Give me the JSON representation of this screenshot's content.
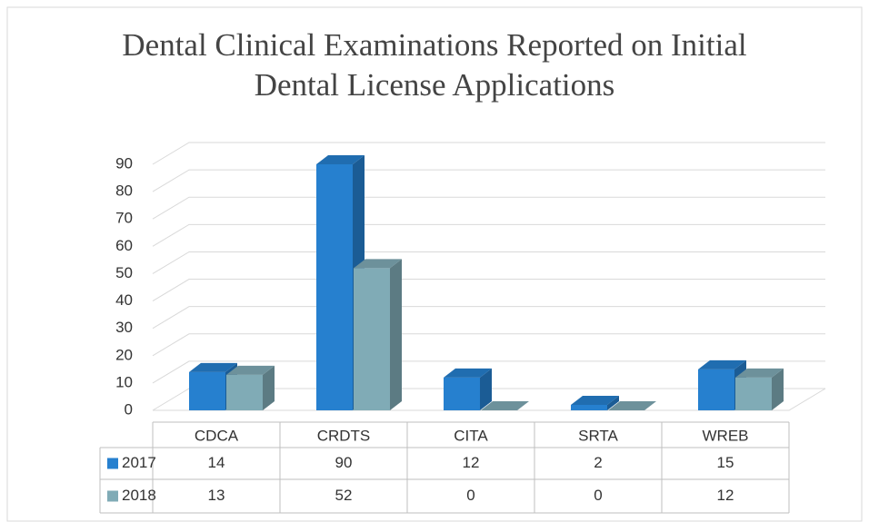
{
  "chart_data": {
    "type": "bar3d",
    "title": "Dental Clinical Examinations Reported on Initial Dental License Applications",
    "categories": [
      "CDCA",
      "CRDTS",
      "CITA",
      "SRTA",
      "WREB"
    ],
    "series": [
      {
        "name": "2017",
        "color": "#2680cf",
        "values": [
          14,
          90,
          12,
          2,
          15
        ]
      },
      {
        "name": "2018",
        "color": "#80abb6",
        "values": [
          13,
          52,
          0,
          0,
          12
        ]
      }
    ],
    "ylim": [
      0,
      90
    ],
    "yticks": [
      0,
      10,
      20,
      30,
      40,
      50,
      60,
      70,
      80,
      90
    ],
    "grid": true,
    "data_table": true
  }
}
